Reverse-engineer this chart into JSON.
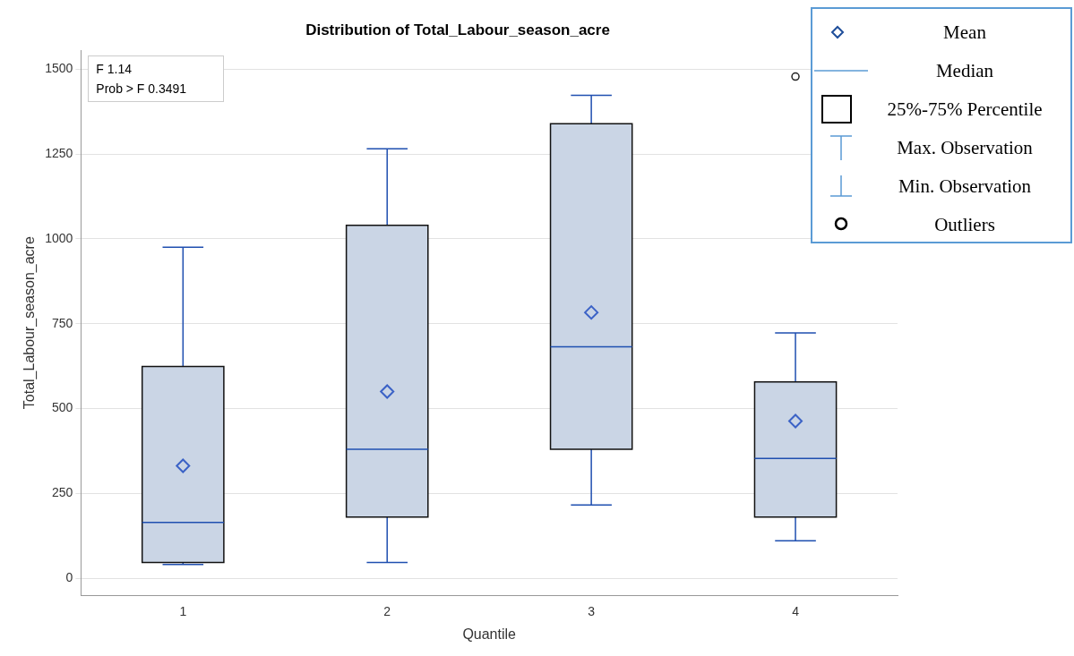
{
  "chart_data": {
    "type": "box",
    "title": "Distribution of Total_Labour_season_acre",
    "xlabel": "Quantile",
    "ylabel": "Total_Labour_season_acre",
    "categories": [
      "1",
      "2",
      "3",
      "4"
    ],
    "boxes": [
      {
        "low": 40,
        "q1": 46,
        "median": 164,
        "q3": 624,
        "high": 975,
        "mean": 331
      },
      {
        "low": 46,
        "q1": 180,
        "median": 380,
        "q3": 1040,
        "high": 1265,
        "mean": 550
      },
      {
        "low": 216,
        "q1": 380,
        "median": 682,
        "q3": 1339,
        "high": 1423,
        "mean": 783
      },
      {
        "low": 110,
        "q1": 180,
        "median": 353,
        "q3": 578,
        "high": 723,
        "mean": 463,
        "outliers": [
          1478
        ]
      }
    ],
    "color": "#cad5e5",
    "ylim": [
      -50,
      1555
    ],
    "yticks": [
      0,
      250,
      500,
      750,
      1000,
      1250,
      1500
    ],
    "grid": "y",
    "marker": "diamond",
    "annotations": [
      "F 1.14",
      "Prob > F 0.3491",
      "Mean",
      "Median",
      "25%-75% Percentile",
      "Max. Observation",
      "Min. Observation",
      "Outliers"
    ]
  }
}
